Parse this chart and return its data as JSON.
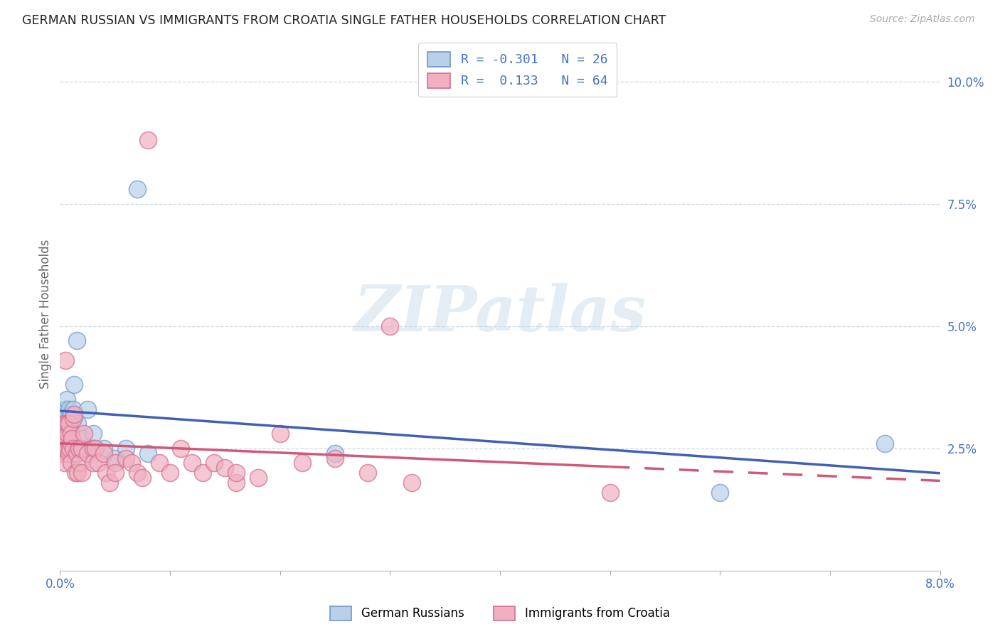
{
  "title": "GERMAN RUSSIAN VS IMMIGRANTS FROM CROATIA SINGLE FATHER HOUSEHOLDS CORRELATION CHART",
  "source": "Source: ZipAtlas.com",
  "ylabel": "Single Father Households",
  "series1_label": "German Russians",
  "series2_label": "Immigrants from Croatia",
  "series1_face_color": "#b8d0ea",
  "series2_face_color": "#f0b0c0",
  "series1_edge_color": "#7098c8",
  "series2_edge_color": "#d07090",
  "series1_line_color": "#4060b8",
  "series2_line_color": "#d05878",
  "R1": -0.301,
  "N1": 26,
  "R2": 0.133,
  "N2": 64,
  "R_N_color": "#4472c4",
  "xlim": [
    0.0,
    0.08
  ],
  "ylim": [
    0.0,
    0.105
  ],
  "xtick_vals": [
    0.0,
    0.01,
    0.02,
    0.03,
    0.04,
    0.05,
    0.06,
    0.07,
    0.08
  ],
  "xtick_labels": [
    "0.0%",
    "",
    "",
    "",
    "",
    "",
    "",
    "",
    "8.0%"
  ],
  "ytick_vals": [
    0.0,
    0.025,
    0.05,
    0.075,
    0.1
  ],
  "ytick_labels": [
    "",
    "2.5%",
    "5.0%",
    "7.5%",
    "10.0%"
  ],
  "series1_x": [
    0.0002,
    0.0003,
    0.0004,
    0.0005,
    0.0005,
    0.0006,
    0.0007,
    0.0008,
    0.0009,
    0.001,
    0.001,
    0.0012,
    0.0013,
    0.0015,
    0.0016,
    0.002,
    0.0025,
    0.003,
    0.004,
    0.005,
    0.006,
    0.007,
    0.008,
    0.025,
    0.06,
    0.075
  ],
  "series1_y": [
    0.027,
    0.032,
    0.033,
    0.033,
    0.026,
    0.035,
    0.03,
    0.033,
    0.028,
    0.032,
    0.03,
    0.033,
    0.038,
    0.047,
    0.03,
    0.027,
    0.033,
    0.028,
    0.025,
    0.023,
    0.025,
    0.078,
    0.024,
    0.024,
    0.016,
    0.026
  ],
  "series2_x": [
    0.0001,
    0.0002,
    0.0002,
    0.0003,
    0.0003,
    0.0004,
    0.0004,
    0.0005,
    0.0005,
    0.0005,
    0.0006,
    0.0006,
    0.0007,
    0.0007,
    0.0008,
    0.0008,
    0.0009,
    0.001,
    0.001,
    0.001,
    0.0011,
    0.0012,
    0.0012,
    0.0013,
    0.0014,
    0.0015,
    0.0016,
    0.0017,
    0.0018,
    0.002,
    0.002,
    0.0022,
    0.0025,
    0.003,
    0.003,
    0.0032,
    0.0035,
    0.004,
    0.0042,
    0.0045,
    0.005,
    0.005,
    0.006,
    0.0065,
    0.007,
    0.0075,
    0.008,
    0.009,
    0.01,
    0.011,
    0.012,
    0.013,
    0.014,
    0.015,
    0.016,
    0.018,
    0.02,
    0.022,
    0.025,
    0.028,
    0.03,
    0.032,
    0.016,
    0.05
  ],
  "series2_y": [
    0.025,
    0.026,
    0.028,
    0.024,
    0.03,
    0.022,
    0.025,
    0.026,
    0.03,
    0.043,
    0.025,
    0.027,
    0.028,
    0.03,
    0.024,
    0.03,
    0.025,
    0.022,
    0.026,
    0.028,
    0.027,
    0.025,
    0.031,
    0.032,
    0.02,
    0.024,
    0.02,
    0.025,
    0.022,
    0.02,
    0.025,
    0.028,
    0.024,
    0.025,
    0.022,
    0.025,
    0.022,
    0.024,
    0.02,
    0.018,
    0.022,
    0.02,
    0.023,
    0.022,
    0.02,
    0.019,
    0.088,
    0.022,
    0.02,
    0.025,
    0.022,
    0.02,
    0.022,
    0.021,
    0.018,
    0.019,
    0.028,
    0.022,
    0.023,
    0.02,
    0.05,
    0.018,
    0.02,
    0.016
  ],
  "watermark_text": "ZIPatlas",
  "bg_color": "#ffffff",
  "grid_color": "#d0d8e0",
  "tick_color": "#4472c4",
  "axis_label_color": "#666666",
  "legend_edge_color": "#cccccc"
}
